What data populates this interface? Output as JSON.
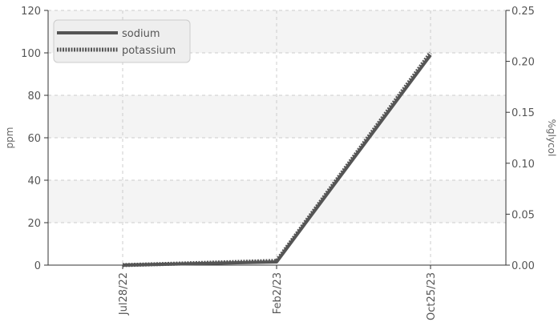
{
  "chart_data": {
    "type": "line",
    "title": "",
    "x": [
      "Jul28/22",
      "Feb2/23",
      "Oct25/23"
    ],
    "series": [
      {
        "name": "sodium",
        "values": [
          0,
          1.5,
          99
        ],
        "color": "#555555",
        "style": "solid"
      },
      {
        "name": "potassium",
        "values": [
          0,
          2,
          100
        ],
        "color": "#555555",
        "style": "dotted"
      }
    ],
    "ylabel_left": "ppm",
    "ylabel_right": "%glycol",
    "ylim_left": [
      0,
      120
    ],
    "ylim_right": [
      0,
      0.25
    ],
    "yticks_left": [
      "0",
      "20",
      "40",
      "60",
      "80",
      "100",
      "120"
    ],
    "yticks_right": [
      "0.00",
      "0.05",
      "0.10",
      "0.15",
      "0.20",
      "0.25"
    ],
    "grid": true,
    "legend_position": "top-left",
    "band_colors": [
      "#f4f4f4",
      "#ffffff"
    ]
  }
}
